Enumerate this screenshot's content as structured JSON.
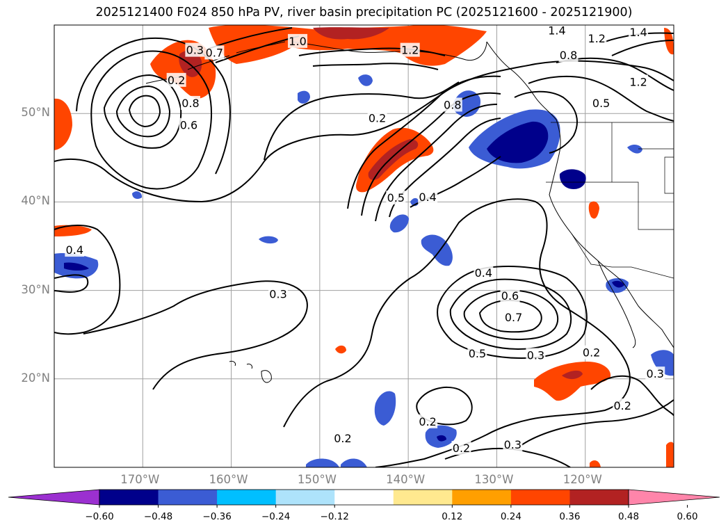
{
  "title": "2025121400 F024 850 hPa PV, river basin precipitation PC (2025121600 - 2025121900)",
  "axes": {
    "lat_ticks": [
      {
        "value": 50,
        "label": "50°N"
      },
      {
        "value": 40,
        "label": "40°N"
      },
      {
        "value": 30,
        "label": "30°N"
      },
      {
        "value": 20,
        "label": "20°N"
      }
    ],
    "lon_ticks": [
      {
        "value": -170,
        "label": "170°W"
      },
      {
        "value": -160,
        "label": "160°W"
      },
      {
        "value": -150,
        "label": "150°W"
      },
      {
        "value": -140,
        "label": "140°W"
      },
      {
        "value": -130,
        "label": "130°W"
      },
      {
        "value": -120,
        "label": "120°W"
      }
    ],
    "lon_range": [
      -180,
      -110
    ],
    "lat_range": [
      10,
      60
    ],
    "grid": true
  },
  "colorbar": {
    "ticks": [
      "−0.60",
      "−0.48",
      "−0.36",
      "−0.24",
      "−0.12",
      "0.12",
      "0.24",
      "0.36",
      "0.48",
      "0.60"
    ],
    "bins": [
      {
        "range": "< -0.60",
        "color": "#9b30d0"
      },
      {
        "range": "-0.60 to -0.48",
        "color": "#00008b"
      },
      {
        "range": "-0.48 to -0.36",
        "color": "#3b5cd4"
      },
      {
        "range": "-0.36 to -0.24",
        "color": "#00bfff"
      },
      {
        "range": "-0.24 to -0.12",
        "color": "#aee3fb"
      },
      {
        "range": "-0.12 to 0.12",
        "color": "#ffffff"
      },
      {
        "range": "0.12 to 0.24",
        "color": "#ffe98f"
      },
      {
        "range": "0.24 to 0.36",
        "color": "#ff9f00"
      },
      {
        "range": "0.36 to 0.48",
        "color": "#ff4500"
      },
      {
        "range": "0.48 to 0.60",
        "color": "#b22222"
      },
      {
        "range": "> 0.60",
        "color": "#ff85aa"
      }
    ]
  },
  "contour_labels": [
    {
      "text": "0.2",
      "lon": -143.5,
      "lat": 49.5
    },
    {
      "text": "0.2",
      "lon": -166.2,
      "lat": 53.8
    },
    {
      "text": "0.3",
      "lon": -164.1,
      "lat": 57.2
    },
    {
      "text": "0.7",
      "lon": -161.9,
      "lat": 56.9
    },
    {
      "text": "0.8",
      "lon": -164.6,
      "lat": 51.2
    },
    {
      "text": "0.6",
      "lon": -164.8,
      "lat": 48.7
    },
    {
      "text": "0.5",
      "lon": -141.4,
      "lat": 40.5
    },
    {
      "text": "0.4",
      "lon": -137.8,
      "lat": 40.6
    },
    {
      "text": "0.8",
      "lon": -135.0,
      "lat": 51.0
    },
    {
      "text": "0.8",
      "lon": -121.9,
      "lat": 56.6
    },
    {
      "text": "0.5",
      "lon": -118.2,
      "lat": 51.2
    },
    {
      "text": "1.4",
      "lon": -123.2,
      "lat": 59.4
    },
    {
      "text": "1.2",
      "lon": -118.7,
      "lat": 58.5
    },
    {
      "text": "1.2",
      "lon": -114.0,
      "lat": 53.6
    },
    {
      "text": "1.4",
      "lon": -114.0,
      "lat": 59.2
    },
    {
      "text": "1.0",
      "lon": -152.5,
      "lat": 58.2
    },
    {
      "text": "1.2",
      "lon": -139.8,
      "lat": 57.2
    },
    {
      "text": "0.4",
      "lon": -177.7,
      "lat": 34.6
    },
    {
      "text": "0.3",
      "lon": -154.7,
      "lat": 29.6
    },
    {
      "text": "0.4",
      "lon": -131.5,
      "lat": 32.0
    },
    {
      "text": "0.6",
      "lon": -128.5,
      "lat": 29.4
    },
    {
      "text": "0.7",
      "lon": -128.1,
      "lat": 27.0
    },
    {
      "text": "0.5",
      "lon": -132.2,
      "lat": 22.9
    },
    {
      "text": "0.3",
      "lon": -125.6,
      "lat": 22.7
    },
    {
      "text": "0.2",
      "lon": -119.3,
      "lat": 23.0
    },
    {
      "text": "0.2",
      "lon": -147.4,
      "lat": 13.3
    },
    {
      "text": "0.2",
      "lon": -137.8,
      "lat": 15.2
    },
    {
      "text": "0.2",
      "lon": -134.0,
      "lat": 12.2
    },
    {
      "text": "0.3",
      "lon": -128.2,
      "lat": 12.6
    },
    {
      "text": "0.2",
      "lon": -115.8,
      "lat": 17.0
    },
    {
      "text": "0.3",
      "lon": -112.1,
      "lat": 20.6
    }
  ]
}
